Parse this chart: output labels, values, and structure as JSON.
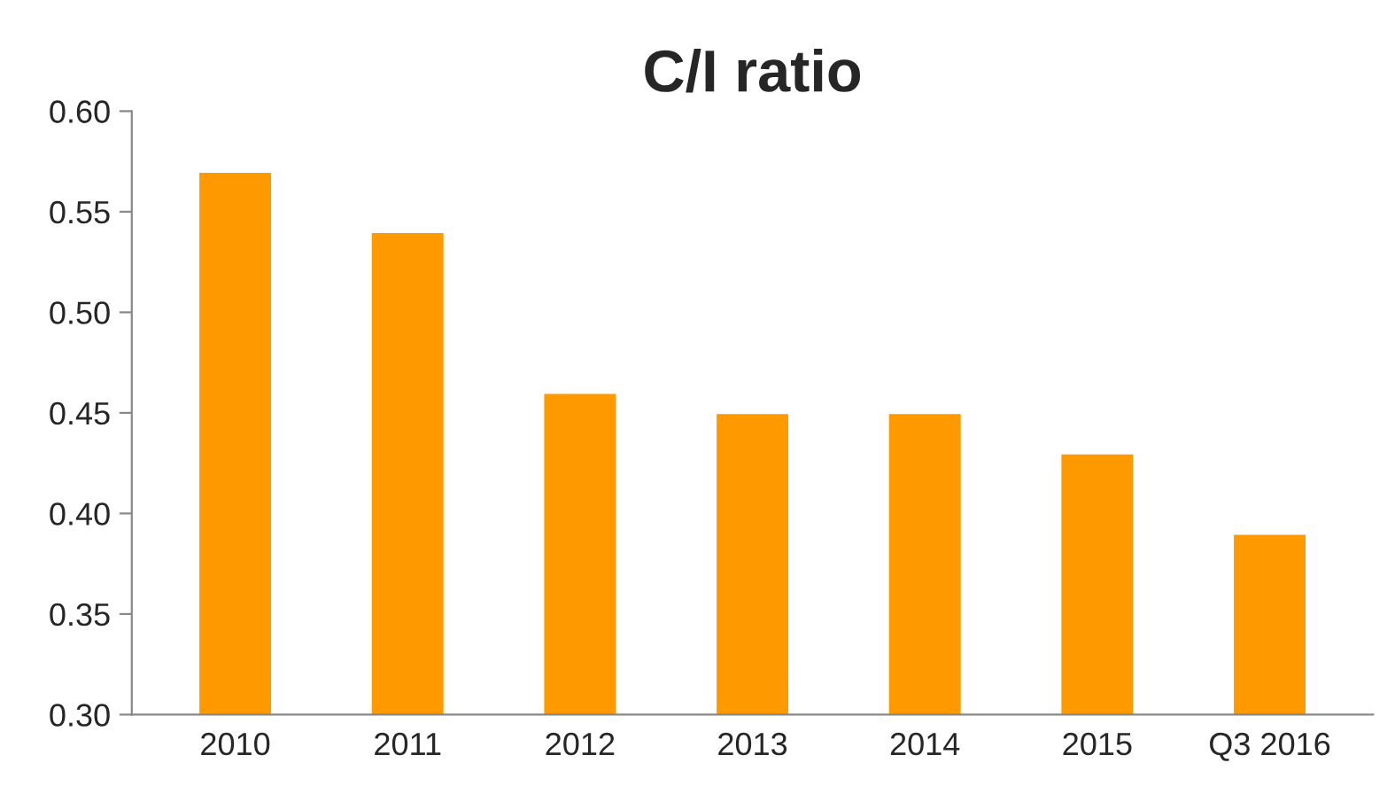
{
  "chart_data": {
    "type": "bar",
    "title": "C/I ratio",
    "categories": [
      "2010",
      "2011",
      "2012",
      "2013",
      "2014",
      "2015",
      "Q3 2016"
    ],
    "values": [
      0.57,
      0.54,
      0.46,
      0.45,
      0.45,
      0.43,
      0.39
    ],
    "color": "#ff9900",
    "ylim": [
      0.3,
      0.6
    ],
    "yticks": [
      {
        "value": 0.3,
        "label": "0.30"
      },
      {
        "value": 0.35,
        "label": "0.35"
      },
      {
        "value": 0.4,
        "label": "0.40"
      },
      {
        "value": 0.45,
        "label": "0.45"
      },
      {
        "value": 0.5,
        "label": "0.50"
      },
      {
        "value": 0.55,
        "label": "0.55"
      },
      {
        "value": 0.6,
        "label": "0.60"
      }
    ],
    "grid": false,
    "legend": false
  }
}
